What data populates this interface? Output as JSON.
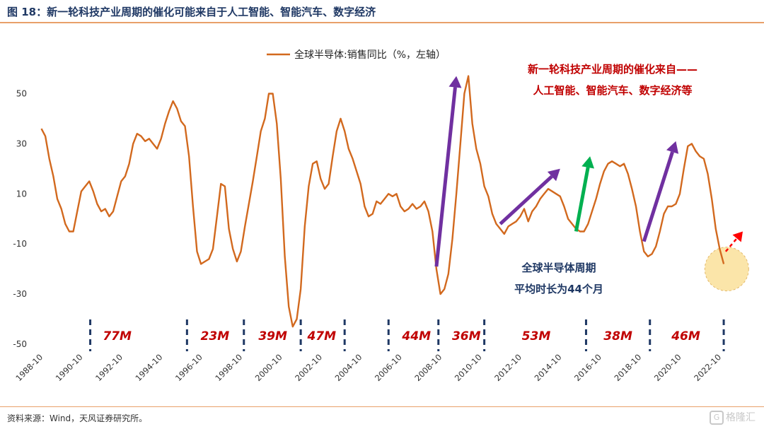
{
  "figure": {
    "title": "图 18：新一轮科技产业周期的催化可能来自于人工智能、智能汽车、数字经济",
    "source": "资料来源：Wind，天风证券研究所。",
    "watermark": "格隆汇",
    "watermark_icon": "gelonghui-logo-icon"
  },
  "chart_data": {
    "type": "line",
    "series": [
      {
        "name": "全球半导体:销售同比（%，左轴）",
        "color": "#d2691e",
        "points": [
          [
            1988.8,
            36
          ],
          [
            1989.0,
            33
          ],
          [
            1989.2,
            24
          ],
          [
            1989.4,
            17
          ],
          [
            1989.6,
            8
          ],
          [
            1989.8,
            4
          ],
          [
            1990.0,
            -2
          ],
          [
            1990.2,
            -5
          ],
          [
            1990.4,
            -5
          ],
          [
            1990.6,
            3
          ],
          [
            1990.8,
            11
          ],
          [
            1991.0,
            13
          ],
          [
            1991.2,
            15
          ],
          [
            1991.4,
            11
          ],
          [
            1991.6,
            6
          ],
          [
            1991.8,
            3
          ],
          [
            1992.0,
            4
          ],
          [
            1992.2,
            1
          ],
          [
            1992.4,
            3
          ],
          [
            1992.6,
            9
          ],
          [
            1992.8,
            15
          ],
          [
            1993.0,
            17
          ],
          [
            1993.2,
            22
          ],
          [
            1993.4,
            30
          ],
          [
            1993.6,
            34
          ],
          [
            1993.8,
            33
          ],
          [
            1994.0,
            31
          ],
          [
            1994.2,
            32
          ],
          [
            1994.4,
            30
          ],
          [
            1994.6,
            28
          ],
          [
            1994.8,
            32
          ],
          [
            1995.0,
            38
          ],
          [
            1995.2,
            43
          ],
          [
            1995.4,
            47
          ],
          [
            1995.6,
            44
          ],
          [
            1995.8,
            39
          ],
          [
            1996.0,
            37
          ],
          [
            1996.2,
            25
          ],
          [
            1996.4,
            5
          ],
          [
            1996.6,
            -13
          ],
          [
            1996.8,
            -18
          ],
          [
            1997.0,
            -17
          ],
          [
            1997.2,
            -16
          ],
          [
            1997.4,
            -12
          ],
          [
            1997.6,
            1
          ],
          [
            1997.8,
            14
          ],
          [
            1998.0,
            13
          ],
          [
            1998.2,
            -4
          ],
          [
            1998.4,
            -12
          ],
          [
            1998.6,
            -17
          ],
          [
            1998.8,
            -13
          ],
          [
            1999.0,
            -3
          ],
          [
            1999.2,
            6
          ],
          [
            1999.4,
            15
          ],
          [
            1999.6,
            25
          ],
          [
            1999.8,
            35
          ],
          [
            2000.0,
            40
          ],
          [
            2000.2,
            50
          ],
          [
            2000.4,
            50
          ],
          [
            2000.6,
            38
          ],
          [
            2000.8,
            16
          ],
          [
            2001.0,
            -15
          ],
          [
            2001.2,
            -35
          ],
          [
            2001.4,
            -43
          ],
          [
            2001.6,
            -40
          ],
          [
            2001.8,
            -28
          ],
          [
            2002.0,
            -3
          ],
          [
            2002.2,
            13
          ],
          [
            2002.4,
            22
          ],
          [
            2002.6,
            23
          ],
          [
            2002.8,
            16
          ],
          [
            2003.0,
            12
          ],
          [
            2003.2,
            14
          ],
          [
            2003.4,
            25
          ],
          [
            2003.6,
            35
          ],
          [
            2003.8,
            40
          ],
          [
            2004.0,
            35
          ],
          [
            2004.2,
            28
          ],
          [
            2004.4,
            24
          ],
          [
            2004.6,
            19
          ],
          [
            2004.8,
            14
          ],
          [
            2005.0,
            5
          ],
          [
            2005.2,
            1
          ],
          [
            2005.4,
            2
          ],
          [
            2005.6,
            7
          ],
          [
            2005.8,
            6
          ],
          [
            2006.0,
            8
          ],
          [
            2006.2,
            10
          ],
          [
            2006.4,
            9
          ],
          [
            2006.6,
            10
          ],
          [
            2006.8,
            5
          ],
          [
            2007.0,
            3
          ],
          [
            2007.2,
            4
          ],
          [
            2007.4,
            6
          ],
          [
            2007.6,
            4
          ],
          [
            2007.8,
            5
          ],
          [
            2008.0,
            7
          ],
          [
            2008.2,
            3
          ],
          [
            2008.4,
            -5
          ],
          [
            2008.6,
            -20
          ],
          [
            2008.8,
            -30
          ],
          [
            2009.0,
            -28
          ],
          [
            2009.2,
            -22
          ],
          [
            2009.4,
            -8
          ],
          [
            2009.6,
            10
          ],
          [
            2009.8,
            30
          ],
          [
            2010.0,
            50
          ],
          [
            2010.2,
            57
          ],
          [
            2010.4,
            38
          ],
          [
            2010.6,
            28
          ],
          [
            2010.8,
            22
          ],
          [
            2011.0,
            13
          ],
          [
            2011.2,
            9
          ],
          [
            2011.4,
            2
          ],
          [
            2011.6,
            -2
          ],
          [
            2011.8,
            -4
          ],
          [
            2012.0,
            -6
          ],
          [
            2012.2,
            -3
          ],
          [
            2012.4,
            -2
          ],
          [
            2012.6,
            -1
          ],
          [
            2012.8,
            1
          ],
          [
            2013.0,
            4
          ],
          [
            2013.2,
            -1
          ],
          [
            2013.4,
            3
          ],
          [
            2013.6,
            5
          ],
          [
            2013.8,
            8
          ],
          [
            2014.0,
            10
          ],
          [
            2014.2,
            12
          ],
          [
            2014.4,
            11
          ],
          [
            2014.6,
            10
          ],
          [
            2014.8,
            9
          ],
          [
            2015.0,
            5
          ],
          [
            2015.2,
            0
          ],
          [
            2015.4,
            -2
          ],
          [
            2015.6,
            -4
          ],
          [
            2015.8,
            -5
          ],
          [
            2016.0,
            -5
          ],
          [
            2016.2,
            -2
          ],
          [
            2016.4,
            3
          ],
          [
            2016.6,
            8
          ],
          [
            2016.8,
            14
          ],
          [
            2017.0,
            19
          ],
          [
            2017.2,
            22
          ],
          [
            2017.4,
            23
          ],
          [
            2017.6,
            22
          ],
          [
            2017.8,
            21
          ],
          [
            2018.0,
            22
          ],
          [
            2018.2,
            18
          ],
          [
            2018.4,
            12
          ],
          [
            2018.6,
            5
          ],
          [
            2018.8,
            -5
          ],
          [
            2019.0,
            -13
          ],
          [
            2019.2,
            -15
          ],
          [
            2019.4,
            -14
          ],
          [
            2019.6,
            -11
          ],
          [
            2019.8,
            -5
          ],
          [
            2020.0,
            2
          ],
          [
            2020.2,
            5
          ],
          [
            2020.4,
            5
          ],
          [
            2020.6,
            6
          ],
          [
            2020.8,
            10
          ],
          [
            2021.0,
            20
          ],
          [
            2021.2,
            29
          ],
          [
            2021.4,
            30
          ],
          [
            2021.6,
            27
          ],
          [
            2021.8,
            25
          ],
          [
            2022.0,
            24
          ],
          [
            2022.2,
            18
          ],
          [
            2022.4,
            8
          ],
          [
            2022.6,
            -4
          ],
          [
            2022.8,
            -12
          ],
          [
            2023.0,
            -18
          ]
        ]
      }
    ],
    "ylim": [
      -50,
      60
    ],
    "yticks": [
      50,
      30,
      10,
      -10,
      -30,
      -50
    ],
    "xlim": [
      1988.5,
      2023.6
    ],
    "xticks": [
      "1988-10",
      "1990-10",
      "1992-10",
      "1994-10",
      "1996-10",
      "1998-10",
      "2000-10",
      "2002-10",
      "2004-10",
      "2006-10",
      "2008-10",
      "2010-10",
      "2012-10",
      "2014-10",
      "2016-10",
      "2018-10",
      "2020-10",
      "2022-10"
    ],
    "grid": false,
    "legend": "top-center",
    "cycle_dividers": [
      1996.1,
      2001.8,
      2008.7,
      2016.1,
      2019.3,
      2023.0
    ],
    "cycle_dividers_all": [
      1991.25,
      1996.1,
      1998.95,
      2001.8,
      2004.0,
      2006.2,
      2008.7,
      2011.0,
      2016.1,
      2019.3,
      2023.0
    ],
    "cycle_labels": [
      {
        "text": "77M",
        "x": 1992.6
      },
      {
        "text": "23M",
        "x": 1997.5
      },
      {
        "text": "39M",
        "x": 2000.4
      },
      {
        "text": "47M",
        "x": 2002.85
      },
      {
        "text": "44M",
        "x": 2007.6
      },
      {
        "text": "36M",
        "x": 2010.1
      },
      {
        "text": "53M",
        "x": 2013.6
      },
      {
        "text": "38M",
        "x": 2017.7
      },
      {
        "text": "46M",
        "x": 2021.1
      }
    ],
    "cycle_marks": [
      1991.25,
      1996.1,
      1998.95,
      2001.8,
      2004.0,
      2006.2,
      2008.7,
      2011.0,
      2016.1,
      2019.3,
      2023.0
    ],
    "arrows": [
      {
        "color": "#7030a0",
        "from": [
          2008.6,
          -19
        ],
        "to": [
          2009.6,
          57
        ]
      },
      {
        "color": "#7030a0",
        "from": [
          2011.8,
          -2
        ],
        "to": [
          2014.8,
          20
        ]
      },
      {
        "color": "#00b050",
        "from": [
          2015.6,
          -5
        ],
        "to": [
          2016.3,
          25
        ]
      },
      {
        "color": "#7030a0",
        "from": [
          2019.0,
          -9
        ],
        "to": [
          2020.6,
          31
        ]
      },
      {
        "color": "#ff0000",
        "from": [
          2023.1,
          -13
        ],
        "to": [
          2024.3,
          -5
        ],
        "dashed": true
      }
    ],
    "annotations": {
      "top_right_line1": "新一轮科技产业周期的催化来自——",
      "top_right_line2": "人工智能、智能汽车、数字经济等",
      "mid_line1": "全球半导体周期",
      "mid_line2": "平均时长为44个月"
    },
    "highlight_circle": {
      "x": 2023.15,
      "y": -20,
      "color": "#fbe5a9"
    }
  }
}
